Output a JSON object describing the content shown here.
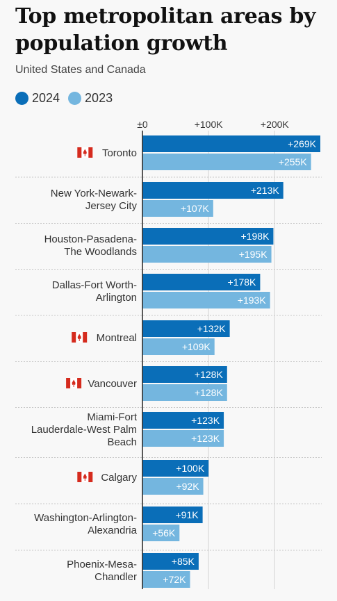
{
  "title": "Top metropolitan areas by population growth",
  "subtitle": "United States and Canada",
  "legend": [
    {
      "label": "2024",
      "color": "#0a6eb8"
    },
    {
      "label": "2023",
      "color": "#74b6df"
    }
  ],
  "flag_icon": "canada-flag-icon",
  "chart_data": {
    "type": "bar",
    "orientation": "horizontal",
    "title": "Top metropolitan areas by population growth",
    "subtitle": "United States and Canada",
    "x_ticks": [
      {
        "value": 0,
        "label": "±0"
      },
      {
        "value": 100000,
        "label": "+100K"
      },
      {
        "value": 200000,
        "label": "+200K"
      }
    ],
    "xlim": [
      0,
      272000
    ],
    "grid": true,
    "legend_position": "top-left",
    "categories": [
      {
        "lines": [
          "Toronto"
        ],
        "flag": true
      },
      {
        "lines": [
          "New York-Newark-",
          "Jersey City"
        ],
        "flag": false
      },
      {
        "lines": [
          "Houston-Pasadena-",
          "The Woodlands"
        ],
        "flag": false
      },
      {
        "lines": [
          "Dallas-Fort Worth-",
          "Arlington"
        ],
        "flag": false
      },
      {
        "lines": [
          "Montreal"
        ],
        "flag": true
      },
      {
        "lines": [
          "Vancouver"
        ],
        "flag": true
      },
      {
        "lines": [
          "Miami-Fort",
          "Lauderdale-West Palm",
          "Beach"
        ],
        "flag": false
      },
      {
        "lines": [
          "Calgary"
        ],
        "flag": true
      },
      {
        "lines": [
          "Washington-Arlington-",
          "Alexandria"
        ],
        "flag": false
      },
      {
        "lines": [
          "Phoenix-Mesa-",
          "Chandler"
        ],
        "flag": false
      }
    ],
    "series": [
      {
        "name": "2024",
        "color": "#0a6eb8",
        "values": [
          269000,
          213000,
          198000,
          178000,
          132000,
          128000,
          123000,
          100000,
          91000,
          85000
        ],
        "labels": [
          "+269K",
          "+213K",
          "+198K",
          "+178K",
          "+132K",
          "+128K",
          "+123K",
          "+100K",
          "+91K",
          "+85K"
        ]
      },
      {
        "name": "2023",
        "color": "#74b6df",
        "values": [
          255000,
          107000,
          195000,
          193000,
          109000,
          128000,
          123000,
          92000,
          56000,
          72000
        ],
        "labels": [
          "+255K",
          "+107K",
          "+195K",
          "+193K",
          "+109K",
          "+128K",
          "+123K",
          "+92K",
          "+56K",
          "+72K"
        ]
      }
    ]
  }
}
